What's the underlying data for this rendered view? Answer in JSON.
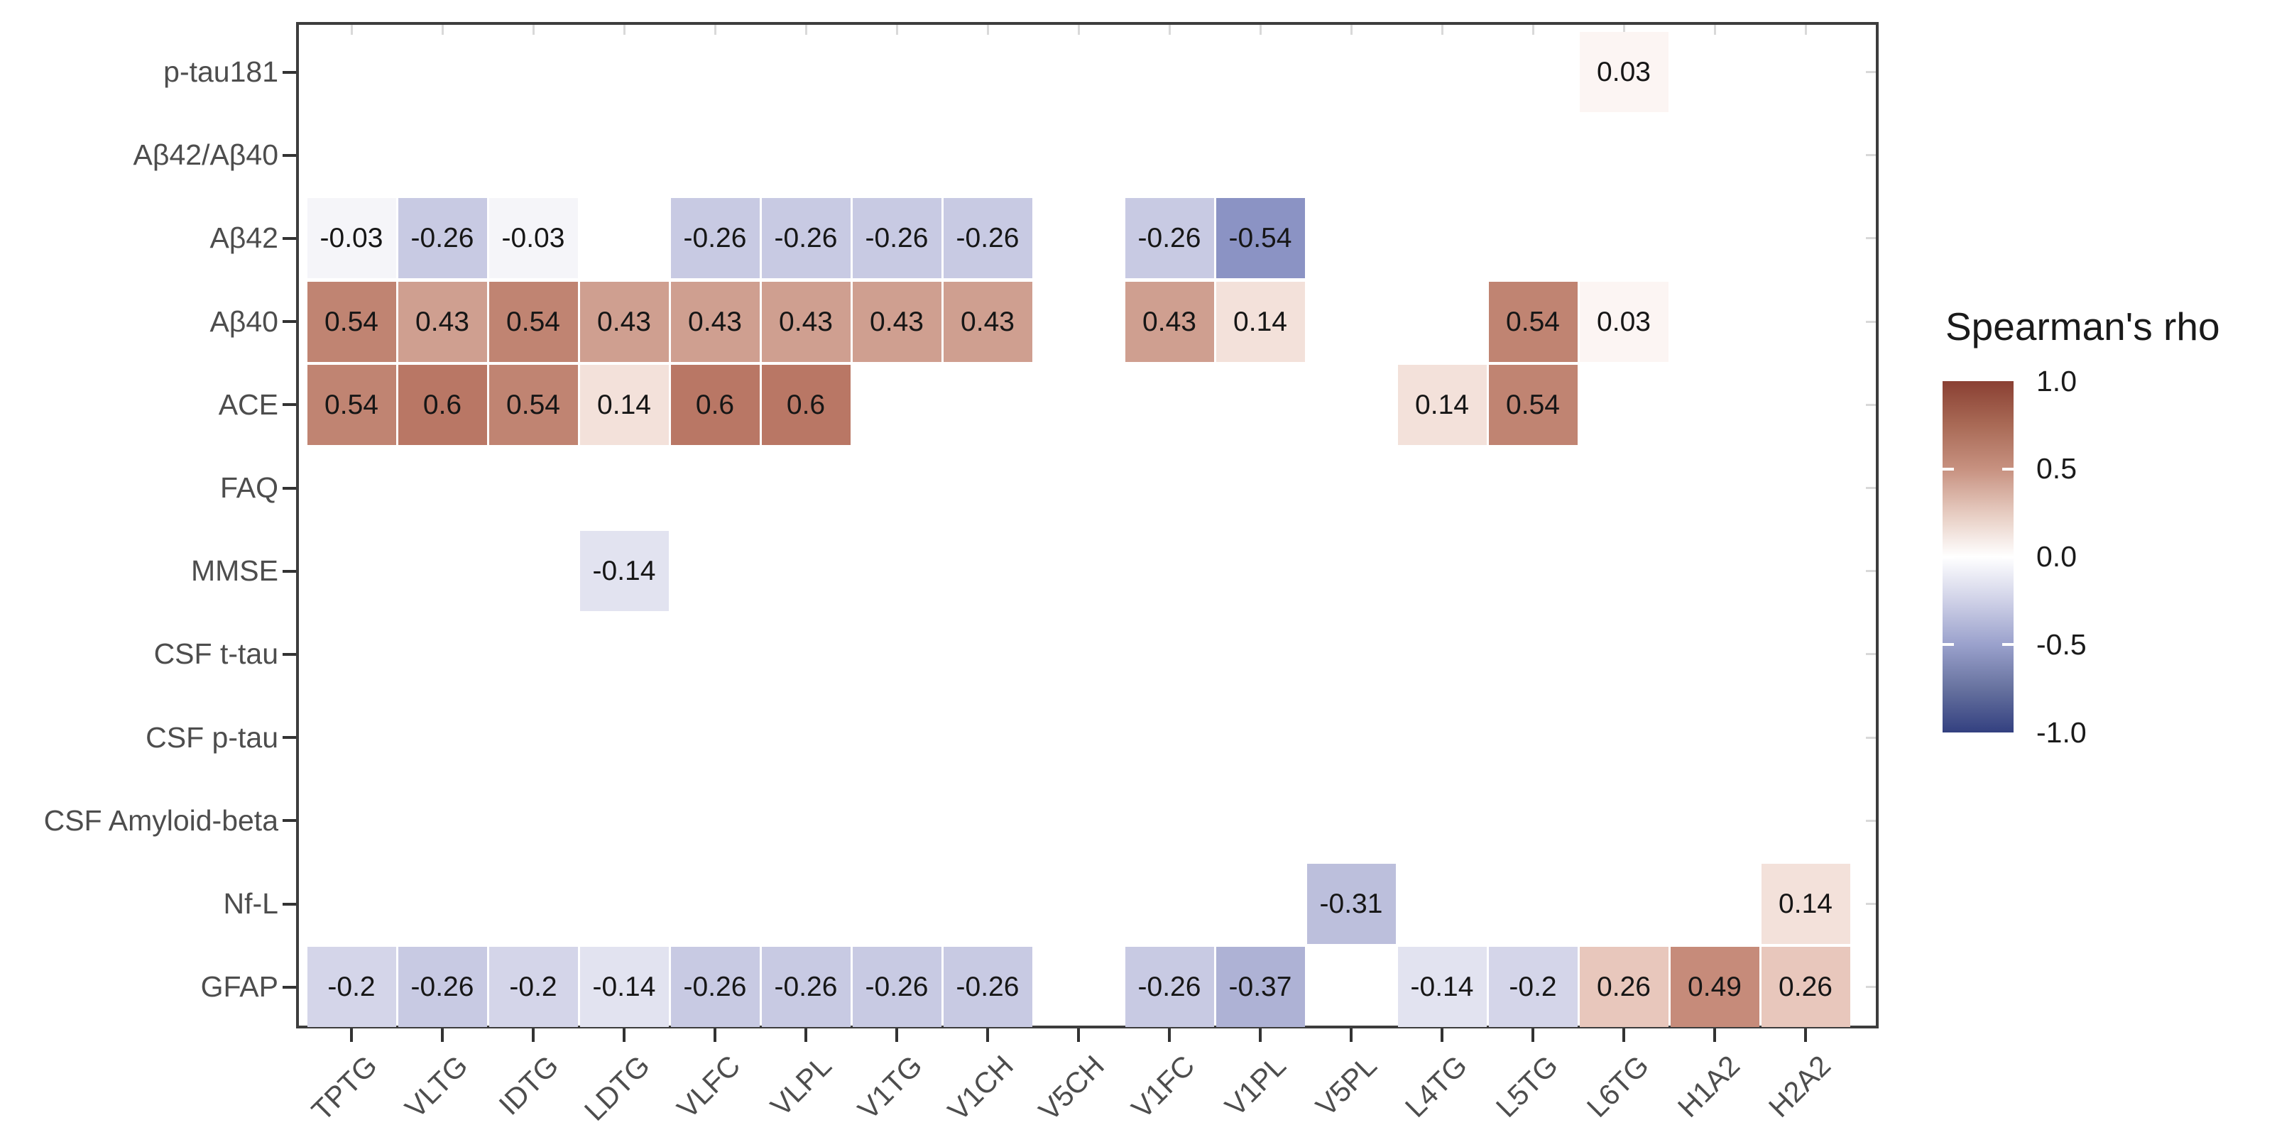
{
  "chart_data": {
    "type": "heatmap",
    "legend": {
      "title": "Spearman's rho",
      "position": "right",
      "tick_labels": [
        "1.0",
        "0.5",
        "0.0",
        "-0.5",
        "-1.0"
      ],
      "tick_values": [
        1.0,
        0.5,
        0.0,
        -0.5,
        -1.0
      ],
      "range": [
        -1.0,
        1.0
      ],
      "gradient_stops": [
        {
          "value": 1.0,
          "color": "#8a4033"
        },
        {
          "value": 0.75,
          "color": "#a96a56"
        },
        {
          "value": 0.5,
          "color": "#c79180"
        },
        {
          "value": 0.25,
          "color": "#e6cbc0"
        },
        {
          "value": 0.0,
          "color": "#ffffff"
        },
        {
          "value": -0.25,
          "color": "#cfd1e7"
        },
        {
          "value": -0.5,
          "color": "#9aa1cc"
        },
        {
          "value": -0.75,
          "color": "#67729f"
        },
        {
          "value": -1.0,
          "color": "#334080"
        }
      ]
    },
    "x_categories": [
      "TPTG",
      "VLTG",
      "IDTG",
      "LDTG",
      "VLFC",
      "VLPL",
      "V1TG",
      "V1CH",
      "V5CH",
      "V1FC",
      "V1PL",
      "V5PL",
      "L4TG",
      "L5TG",
      "L6TG",
      "H1A2",
      "H2A2"
    ],
    "y_categories": [
      "p-tau181",
      "Aβ42/Aβ40",
      "Aβ42",
      "Aβ40",
      "ACE",
      "FAQ",
      "MMSE",
      "CSF t-tau",
      "CSF p-tau",
      "CSF Amyloid-beta",
      "Nf-L",
      "GFAP"
    ],
    "cells": [
      {
        "row": "p-tau181",
        "col": "L6TG",
        "value": 0.03,
        "label": "0.03"
      },
      {
        "row": "Aβ42",
        "col": "TPTG",
        "value": -0.03,
        "label": "-0.03"
      },
      {
        "row": "Aβ42",
        "col": "VLTG",
        "value": -0.26,
        "label": "-0.26"
      },
      {
        "row": "Aβ42",
        "col": "IDTG",
        "value": -0.03,
        "label": "-0.03"
      },
      {
        "row": "Aβ42",
        "col": "VLFC",
        "value": -0.26,
        "label": "-0.26"
      },
      {
        "row": "Aβ42",
        "col": "VLPL",
        "value": -0.26,
        "label": "-0.26"
      },
      {
        "row": "Aβ42",
        "col": "V1TG",
        "value": -0.26,
        "label": "-0.26"
      },
      {
        "row": "Aβ42",
        "col": "V1CH",
        "value": -0.26,
        "label": "-0.26"
      },
      {
        "row": "Aβ42",
        "col": "V1FC",
        "value": -0.26,
        "label": "-0.26"
      },
      {
        "row": "Aβ42",
        "col": "V1PL",
        "value": -0.54,
        "label": "-0.54"
      },
      {
        "row": "Aβ40",
        "col": "TPTG",
        "value": 0.54,
        "label": "0.54"
      },
      {
        "row": "Aβ40",
        "col": "VLTG",
        "value": 0.43,
        "label": "0.43"
      },
      {
        "row": "Aβ40",
        "col": "IDTG",
        "value": 0.54,
        "label": "0.54"
      },
      {
        "row": "Aβ40",
        "col": "LDTG",
        "value": 0.43,
        "label": "0.43"
      },
      {
        "row": "Aβ40",
        "col": "VLFC",
        "value": 0.43,
        "label": "0.43"
      },
      {
        "row": "Aβ40",
        "col": "VLPL",
        "value": 0.43,
        "label": "0.43"
      },
      {
        "row": "Aβ40",
        "col": "V1TG",
        "value": 0.43,
        "label": "0.43"
      },
      {
        "row": "Aβ40",
        "col": "V1CH",
        "value": 0.43,
        "label": "0.43"
      },
      {
        "row": "Aβ40",
        "col": "V1FC",
        "value": 0.43,
        "label": "0.43"
      },
      {
        "row": "Aβ40",
        "col": "V1PL",
        "value": 0.14,
        "label": "0.14"
      },
      {
        "row": "Aβ40",
        "col": "L5TG",
        "value": 0.54,
        "label": "0.54"
      },
      {
        "row": "Aβ40",
        "col": "L6TG",
        "value": 0.03,
        "label": "0.03"
      },
      {
        "row": "ACE",
        "col": "TPTG",
        "value": 0.54,
        "label": "0.54"
      },
      {
        "row": "ACE",
        "col": "VLTG",
        "value": 0.6,
        "label": "0.6"
      },
      {
        "row": "ACE",
        "col": "IDTG",
        "value": 0.54,
        "label": "0.54"
      },
      {
        "row": "ACE",
        "col": "LDTG",
        "value": 0.14,
        "label": "0.14"
      },
      {
        "row": "ACE",
        "col": "VLFC",
        "value": 0.6,
        "label": "0.6"
      },
      {
        "row": "ACE",
        "col": "VLPL",
        "value": 0.6,
        "label": "0.6"
      },
      {
        "row": "ACE",
        "col": "L4TG",
        "value": 0.14,
        "label": "0.14"
      },
      {
        "row": "ACE",
        "col": "L5TG",
        "value": 0.54,
        "label": "0.54"
      },
      {
        "row": "MMSE",
        "col": "LDTG",
        "value": -0.14,
        "label": "-0.14"
      },
      {
        "row": "Nf-L",
        "col": "V5PL",
        "value": -0.31,
        "label": "-0.31"
      },
      {
        "row": "Nf-L",
        "col": "H2A2",
        "value": 0.14,
        "label": "0.14"
      },
      {
        "row": "GFAP",
        "col": "TPTG",
        "value": -0.2,
        "label": "-0.2"
      },
      {
        "row": "GFAP",
        "col": "VLTG",
        "value": -0.26,
        "label": "-0.26"
      },
      {
        "row": "GFAP",
        "col": "IDTG",
        "value": -0.2,
        "label": "-0.2"
      },
      {
        "row": "GFAP",
        "col": "LDTG",
        "value": -0.14,
        "label": "-0.14"
      },
      {
        "row": "GFAP",
        "col": "VLFC",
        "value": -0.26,
        "label": "-0.26"
      },
      {
        "row": "GFAP",
        "col": "VLPL",
        "value": -0.26,
        "label": "-0.26"
      },
      {
        "row": "GFAP",
        "col": "V1TG",
        "value": -0.26,
        "label": "-0.26"
      },
      {
        "row": "GFAP",
        "col": "V1CH",
        "value": -0.26,
        "label": "-0.26"
      },
      {
        "row": "GFAP",
        "col": "V1FC",
        "value": -0.26,
        "label": "-0.26"
      },
      {
        "row": "GFAP",
        "col": "V1PL",
        "value": -0.37,
        "label": "-0.37"
      },
      {
        "row": "GFAP",
        "col": "L4TG",
        "value": -0.14,
        "label": "-0.14"
      },
      {
        "row": "GFAP",
        "col": "L5TG",
        "value": -0.2,
        "label": "-0.2"
      },
      {
        "row": "GFAP",
        "col": "L6TG",
        "value": 0.26,
        "label": "0.26"
      },
      {
        "row": "GFAP",
        "col": "H1A2",
        "value": 0.49,
        "label": "0.49"
      },
      {
        "row": "GFAP",
        "col": "H2A2",
        "value": 0.26,
        "label": "0.26"
      }
    ],
    "value_colors": {
      "0.6": "#b97765",
      "0.54": "#c08472",
      "0.49": "#c68b7a",
      "0.43": "#cf9f90",
      "0.26": "#e8c7bc",
      "0.14": "#f3e1da",
      "0.03": "#fcf5f3",
      "-0.03": "#f5f5f9",
      "-0.14": "#e2e3f0",
      "-0.2": "#d4d5e9",
      "-0.26": "#c8cae3",
      "-0.31": "#bcbfdc",
      "-0.37": "#aeb2d5",
      "-0.54": "#8b93c4"
    },
    "colors": {
      "background": "#ffffff",
      "panel_border": "#3d3d3d",
      "major_tick": "#333333",
      "minor_tick": "#d9d9d9",
      "axis_text": "#4d4d4d",
      "cell_text": "#161616",
      "legend_text": "#1a1a1a",
      "cell_gap": "#ffffff"
    }
  }
}
